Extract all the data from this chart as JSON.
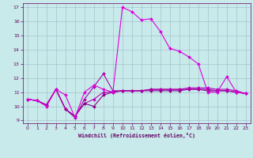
{
  "xlabel": "Windchill (Refroidissement éolien,°C)",
  "background_color": "#c8eaea",
  "grid_color": "#a0b8c8",
  "x": [
    0,
    1,
    2,
    3,
    4,
    5,
    6,
    7,
    8,
    9,
    10,
    11,
    12,
    13,
    14,
    15,
    16,
    17,
    18,
    19,
    20,
    21,
    22,
    23
  ],
  "line1": [
    10.5,
    10.4,
    10.0,
    11.2,
    10.8,
    9.2,
    11.0,
    11.5,
    11.2,
    11.0,
    17.0,
    16.7,
    16.1,
    16.2,
    15.3,
    14.1,
    13.9,
    13.5,
    13.0,
    11.0,
    11.0,
    12.1,
    11.0,
    10.9
  ],
  "line2": [
    10.5,
    10.4,
    10.1,
    11.2,
    9.8,
    9.2,
    10.5,
    11.4,
    12.3,
    11.1,
    11.1,
    11.1,
    11.1,
    11.2,
    11.2,
    11.2,
    11.2,
    11.2,
    11.2,
    11.2,
    11.1,
    11.1,
    11.0,
    10.9
  ],
  "line3": [
    10.5,
    10.4,
    10.1,
    11.2,
    9.8,
    9.3,
    10.2,
    10.0,
    10.8,
    11.0,
    11.1,
    11.1,
    11.1,
    11.1,
    11.1,
    11.1,
    11.1,
    11.2,
    11.2,
    11.1,
    11.1,
    11.1,
    11.0,
    10.9
  ],
  "line4": [
    10.5,
    10.4,
    10.1,
    11.2,
    9.8,
    9.3,
    10.2,
    10.5,
    11.0,
    11.0,
    11.1,
    11.1,
    11.1,
    11.2,
    11.2,
    11.2,
    11.2,
    11.3,
    11.3,
    11.3,
    11.2,
    11.2,
    11.1,
    10.9
  ],
  "ylim": [
    9,
    17
  ],
  "xlim": [
    0,
    23
  ],
  "line_color1": "#dd00dd",
  "line_color2": "#aa00aa",
  "line_color3": "#880088",
  "line_color4": "#bb00bb",
  "tick_color": "#660066",
  "label_color": "#660066",
  "figwidth": 3.2,
  "figheight": 2.0,
  "dpi": 100
}
